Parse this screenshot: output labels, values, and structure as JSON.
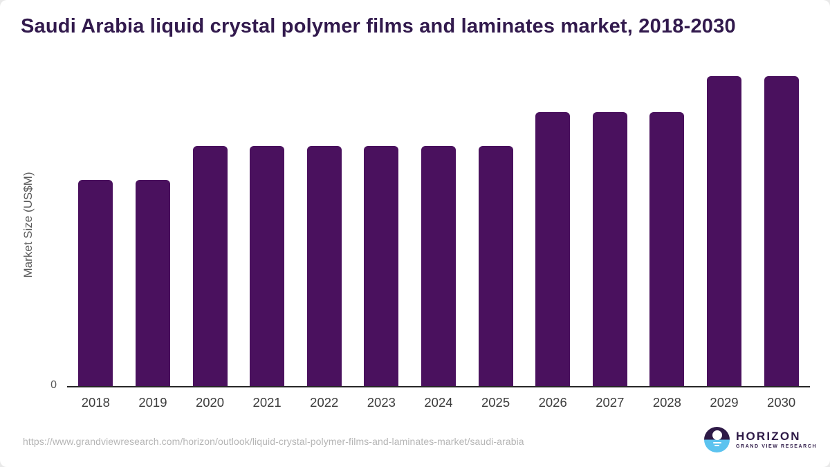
{
  "title": "Saudi Arabia liquid crystal polymer films and laminates market, 2018-2030",
  "colors": {
    "bar": "#4a115e",
    "title_text": "#321a4d",
    "axis_line": "#262626",
    "x_tick_label": "#3d3d3d",
    "axis_label": "#595959",
    "footer_url": "#b5b5b5",
    "logo_purple": "#2e1a47",
    "logo_blue": "#5cc3ef"
  },
  "chart_data": {
    "type": "bar",
    "title": "Saudi Arabia liquid crystal polymer films and laminates market, 2018-2030",
    "xlabel": "",
    "ylabel": "Market Size (US$M)",
    "categories": [
      "2018",
      "2019",
      "2020",
      "2021",
      "2022",
      "2023",
      "2024",
      "2025",
      "2026",
      "2027",
      "2028",
      "2029",
      "2030"
    ],
    "values_pct_of_max": [
      66.5,
      66.5,
      77.5,
      77.5,
      77.5,
      77.5,
      77.5,
      77.5,
      88.5,
      88.5,
      88.5,
      100,
      100
    ],
    "y_axis_ticks": [
      "0"
    ],
    "grid": false,
    "legend": false,
    "bar_color": "#4a115e"
  },
  "footer": {
    "url": "https://www.grandviewresearch.com/horizon/outlook/liquid-crystal-polymer-films-and-laminates-market/saudi-arabia",
    "logo": {
      "brand": "HORIZON",
      "sub_brand": "GRAND VIEW RESEARCH"
    }
  }
}
